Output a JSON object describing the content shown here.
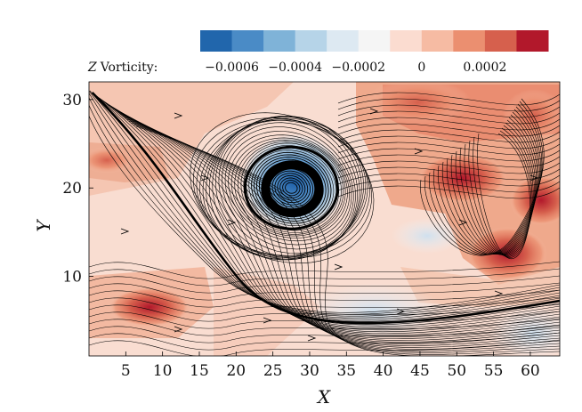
{
  "chart_data": {
    "type": "heatmap",
    "description_fields": "contour of vorticity with overlaid streamlines",
    "xlabel": "X",
    "ylabel": "Y",
    "xlim": [
      0,
      64
    ],
    "ylim": [
      1,
      32
    ],
    "xticks": [
      5,
      10,
      15,
      20,
      25,
      30,
      35,
      40,
      45,
      50,
      55,
      60
    ],
    "yticks": [
      10,
      20,
      30
    ],
    "xtick_labels": [
      "5",
      "10",
      "15",
      "20",
      "25",
      "30",
      "35",
      "40",
      "45",
      "50",
      "55",
      "60"
    ],
    "ytick_labels": [
      "10",
      "20",
      "30"
    ],
    "colorbar": {
      "label": "Z Vorticity:",
      "label_var": "Z",
      "label_text": "Vorticity:",
      "min": -0.0007,
      "max": 0.0004,
      "tick_values": [
        -0.0006,
        -0.0004,
        -0.0002,
        0,
        0.0002
      ],
      "tick_labels": [
        "−0.0006",
        "−0.0004",
        "−0.0002",
        "0",
        "0.0002"
      ],
      "colors": [
        "#2166ac",
        "#4a8bc6",
        "#7fb3d8",
        "#b6d4e8",
        "#dde9f2",
        "#f5f5f5",
        "#fbdcd0",
        "#f6bba3",
        "#eb8f70",
        "#d6604d",
        "#b2182b"
      ]
    },
    "vortex_core": {
      "x": 27.5,
      "y": 20
    },
    "vorticity_regions": [
      {
        "x": 8,
        "y": 6,
        "value": 0.00035
      },
      {
        "x": 5,
        "y": 23,
        "value": 0.0002
      },
      {
        "x": 47,
        "y": 28,
        "value": 0.0003
      },
      {
        "x": 52,
        "y": 21,
        "value": 0.00035
      },
      {
        "x": 60,
        "y": 19,
        "value": 0.0004
      },
      {
        "x": 55,
        "y": 12,
        "value": 0.0003
      },
      {
        "x": 30,
        "y": 21,
        "value": -0.0004
      },
      {
        "x": 36,
        "y": 6,
        "value": -0.0001
      },
      {
        "x": 60,
        "y": 4,
        "value": -0.0001
      }
    ]
  }
}
